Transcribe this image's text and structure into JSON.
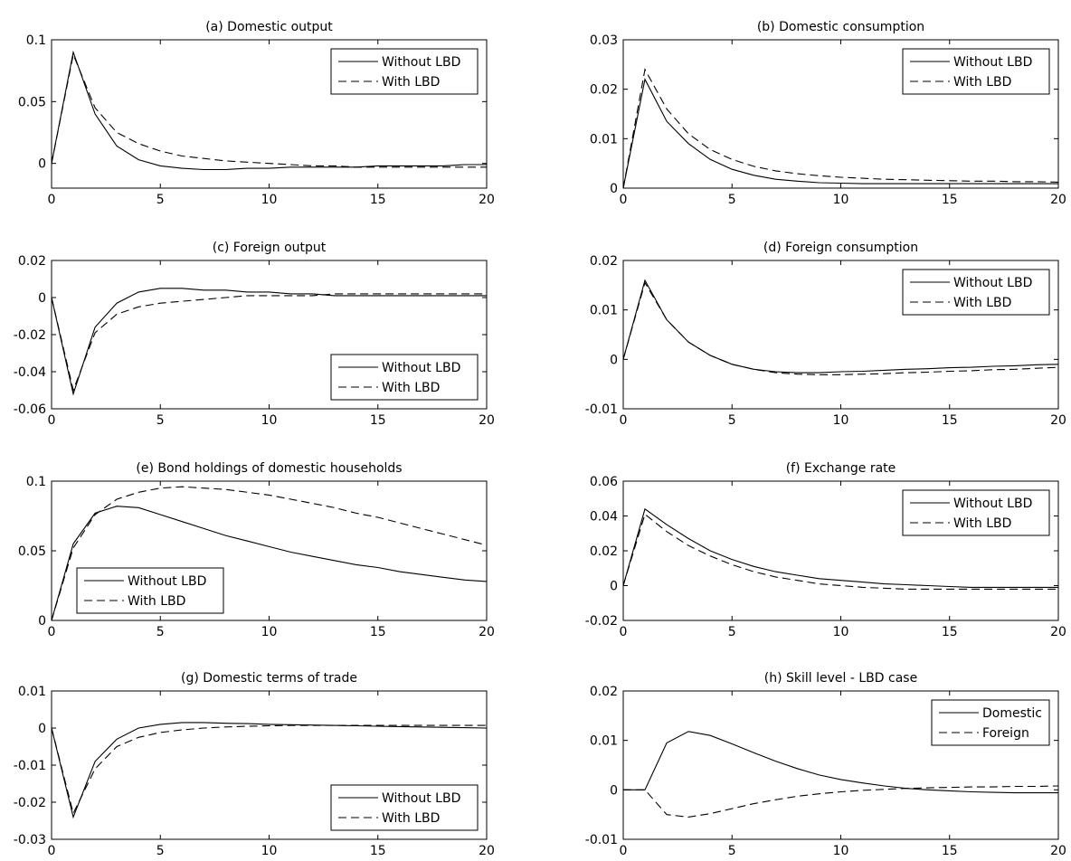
{
  "chart_data": [
    {
      "type": "line",
      "title": "(a) Domestic output",
      "xlim": [
        0,
        20
      ],
      "ylim": [
        -0.02,
        0.1
      ],
      "xticks": [
        0,
        5,
        10,
        15,
        20
      ],
      "yticks": [
        0,
        0.05,
        0.1
      ],
      "ytick_labels": [
        "0",
        "0.05",
        "0.1"
      ],
      "legend": "top-right",
      "series": [
        {
          "name": "Without LBD",
          "style": "solid",
          "x": [
            0,
            1,
            2,
            3,
            4,
            5,
            6,
            7,
            8,
            9,
            10,
            11,
            12,
            13,
            14,
            15,
            16,
            17,
            18,
            19,
            20
          ],
          "y": [
            0,
            0.09,
            0.04,
            0.014,
            0.003,
            -0.002,
            -0.004,
            -0.005,
            -0.005,
            -0.004,
            -0.004,
            -0.003,
            -0.003,
            -0.003,
            -0.003,
            -0.002,
            -0.002,
            -0.002,
            -0.002,
            -0.001,
            -0.001
          ]
        },
        {
          "name": "With LBD",
          "style": "dashed",
          "x": [
            0,
            1,
            2,
            3,
            4,
            5,
            6,
            7,
            8,
            9,
            10,
            11,
            12,
            13,
            14,
            15,
            16,
            17,
            18,
            19,
            20
          ],
          "y": [
            0,
            0.088,
            0.045,
            0.025,
            0.016,
            0.01,
            0.006,
            0.004,
            0.002,
            0.001,
            0,
            -0.001,
            -0.002,
            -0.002,
            -0.003,
            -0.003,
            -0.003,
            -0.003,
            -0.003,
            -0.003,
            -0.003
          ]
        }
      ]
    },
    {
      "type": "line",
      "title": "(b) Domestic consumption",
      "xlim": [
        0,
        20
      ],
      "ylim": [
        0,
        0.03
      ],
      "xticks": [
        0,
        5,
        10,
        15,
        20
      ],
      "yticks": [
        0,
        0.01,
        0.02,
        0.03
      ],
      "ytick_labels": [
        "0",
        "0.01",
        "0.02",
        "0.03"
      ],
      "legend": "top-right",
      "series": [
        {
          "name": "Without LBD",
          "style": "solid",
          "x": [
            0,
            1,
            2,
            3,
            4,
            5,
            6,
            7,
            8,
            9,
            10,
            11,
            12,
            13,
            14,
            15,
            16,
            17,
            18,
            19,
            20
          ],
          "y": [
            0,
            0.022,
            0.0135,
            0.009,
            0.0058,
            0.0038,
            0.0026,
            0.0018,
            0.0014,
            0.0011,
            0.001,
            0.0009,
            0.0009,
            0.0009,
            0.0009,
            0.0009,
            0.0009,
            0.0009,
            0.0009,
            0.0009,
            0.0009
          ]
        },
        {
          "name": "With LBD",
          "style": "dashed",
          "x": [
            0,
            1,
            2,
            3,
            4,
            5,
            6,
            7,
            8,
            9,
            10,
            11,
            12,
            13,
            14,
            15,
            16,
            17,
            18,
            19,
            20
          ],
          "y": [
            0,
            0.024,
            0.016,
            0.011,
            0.0078,
            0.0058,
            0.0044,
            0.0035,
            0.0029,
            0.0025,
            0.0022,
            0.002,
            0.0018,
            0.0017,
            0.0016,
            0.0015,
            0.0014,
            0.0014,
            0.0013,
            0.0013,
            0.0012
          ]
        }
      ]
    },
    {
      "type": "line",
      "title": "(c) Foreign output",
      "xlim": [
        0,
        20
      ],
      "ylim": [
        -0.06,
        0.02
      ],
      "xticks": [
        0,
        5,
        10,
        15,
        20
      ],
      "yticks": [
        -0.06,
        -0.04,
        -0.02,
        0,
        0.02
      ],
      "ytick_labels": [
        "-0.06",
        "-0.04",
        "-0.02",
        "0",
        "0.02"
      ],
      "legend": "bottom-right",
      "series": [
        {
          "name": "Without LBD",
          "style": "solid",
          "x": [
            0,
            1,
            2,
            3,
            4,
            5,
            6,
            7,
            8,
            9,
            10,
            11,
            12,
            13,
            14,
            15,
            16,
            17,
            18,
            19,
            20
          ],
          "y": [
            0,
            -0.052,
            -0.016,
            -0.003,
            0.003,
            0.005,
            0.005,
            0.004,
            0.004,
            0.003,
            0.003,
            0.002,
            0.002,
            0.001,
            0.001,
            0.001,
            0.001,
            0.001,
            0.001,
            0.001,
            0.001
          ]
        },
        {
          "name": "With LBD",
          "style": "dashed",
          "x": [
            0,
            1,
            2,
            3,
            4,
            5,
            6,
            7,
            8,
            9,
            10,
            11,
            12,
            13,
            14,
            15,
            16,
            17,
            18,
            19,
            20
          ],
          "y": [
            0,
            -0.05,
            -0.019,
            -0.009,
            -0.005,
            -0.003,
            -0.002,
            -0.001,
            0,
            0.001,
            0.001,
            0.001,
            0.001,
            0.002,
            0.002,
            0.002,
            0.002,
            0.002,
            0.002,
            0.002,
            0.002
          ]
        }
      ]
    },
    {
      "type": "line",
      "title": "(d) Foreign consumption",
      "xlim": [
        0,
        20
      ],
      "ylim": [
        -0.01,
        0.02
      ],
      "xticks": [
        0,
        5,
        10,
        15,
        20
      ],
      "yticks": [
        -0.01,
        0,
        0.01,
        0.02
      ],
      "ytick_labels": [
        "-0.01",
        "0",
        "0.01",
        "0.02"
      ],
      "legend": "top-right",
      "series": [
        {
          "name": "Without LBD",
          "style": "solid",
          "x": [
            0,
            1,
            2,
            3,
            4,
            5,
            6,
            7,
            8,
            9,
            10,
            11,
            12,
            13,
            14,
            15,
            16,
            17,
            18,
            19,
            20
          ],
          "y": [
            0,
            0.016,
            0.008,
            0.0035,
            0.0008,
            -0.001,
            -0.002,
            -0.0025,
            -0.0027,
            -0.0027,
            -0.0025,
            -0.0024,
            -0.0022,
            -0.002,
            -0.0019,
            -0.0017,
            -0.0016,
            -0.0014,
            -0.0013,
            -0.0011,
            -0.001
          ]
        },
        {
          "name": "With LBD",
          "style": "dashed",
          "x": [
            0,
            1,
            2,
            3,
            4,
            5,
            6,
            7,
            8,
            9,
            10,
            11,
            12,
            13,
            14,
            15,
            16,
            17,
            18,
            19,
            20
          ],
          "y": [
            0,
            0.0155,
            0.008,
            0.0035,
            0.0008,
            -0.001,
            -0.002,
            -0.0027,
            -0.003,
            -0.0031,
            -0.0031,
            -0.003,
            -0.0029,
            -0.0027,
            -0.0026,
            -0.0024,
            -0.0023,
            -0.0021,
            -0.002,
            -0.0018,
            -0.0016
          ]
        }
      ]
    },
    {
      "type": "line",
      "title": "(e) Bond holdings of domestic households",
      "xlim": [
        0,
        20
      ],
      "ylim": [
        0,
        0.1
      ],
      "xticks": [
        0,
        5,
        10,
        15,
        20
      ],
      "yticks": [
        0,
        0.05,
        0.1
      ],
      "ytick_labels": [
        "0",
        "0.05",
        "0.1"
      ],
      "legend": "bottom-left",
      "series": [
        {
          "name": "Without LBD",
          "style": "solid",
          "x": [
            0,
            1,
            2,
            3,
            4,
            5,
            6,
            7,
            8,
            9,
            10,
            11,
            12,
            13,
            14,
            15,
            16,
            17,
            18,
            19,
            20
          ],
          "y": [
            0,
            0.055,
            0.077,
            0.082,
            0.081,
            0.076,
            0.071,
            0.066,
            0.061,
            0.057,
            0.053,
            0.049,
            0.046,
            0.043,
            0.04,
            0.038,
            0.035,
            0.033,
            0.031,
            0.029,
            0.028
          ]
        },
        {
          "name": "With LBD",
          "style": "dashed",
          "x": [
            0,
            1,
            2,
            3,
            4,
            5,
            6,
            7,
            8,
            9,
            10,
            11,
            12,
            13,
            14,
            15,
            16,
            17,
            18,
            19,
            20
          ],
          "y": [
            0,
            0.052,
            0.076,
            0.087,
            0.092,
            0.095,
            0.096,
            0.095,
            0.094,
            0.092,
            0.09,
            0.087,
            0.084,
            0.081,
            0.077,
            0.074,
            0.07,
            0.066,
            0.062,
            0.058,
            0.054
          ]
        }
      ]
    },
    {
      "type": "line",
      "title": "(f) Exchange rate",
      "xlim": [
        0,
        20
      ],
      "ylim": [
        -0.02,
        0.06
      ],
      "xticks": [
        0,
        5,
        10,
        15,
        20
      ],
      "yticks": [
        -0.02,
        0,
        0.02,
        0.04,
        0.06
      ],
      "ytick_labels": [
        "-0.02",
        "0",
        "0.02",
        "0.04",
        "0.06"
      ],
      "legend": "top-right",
      "series": [
        {
          "name": "Without LBD",
          "style": "solid",
          "x": [
            0,
            1,
            2,
            3,
            4,
            5,
            6,
            7,
            8,
            9,
            10,
            11,
            12,
            13,
            14,
            15,
            16,
            17,
            18,
            19,
            20
          ],
          "y": [
            0,
            0.044,
            0.035,
            0.027,
            0.02,
            0.015,
            0.011,
            0.008,
            0.006,
            0.004,
            0.003,
            0.002,
            0.001,
            0.0005,
            0,
            -0.0005,
            -0.001,
            -0.001,
            -0.001,
            -0.001,
            -0.001
          ]
        },
        {
          "name": "With LBD",
          "style": "dashed",
          "x": [
            0,
            1,
            2,
            3,
            4,
            5,
            6,
            7,
            8,
            9,
            10,
            11,
            12,
            13,
            14,
            15,
            16,
            17,
            18,
            19,
            20
          ],
          "y": [
            0,
            0.041,
            0.031,
            0.023,
            0.017,
            0.012,
            0.008,
            0.005,
            0.003,
            0.001,
            0,
            -0.001,
            -0.0015,
            -0.002,
            -0.002,
            -0.002,
            -0.002,
            -0.002,
            -0.002,
            -0.002,
            -0.002
          ]
        }
      ]
    },
    {
      "type": "line",
      "title": "(g) Domestic terms of trade",
      "xlim": [
        0,
        20
      ],
      "ylim": [
        -0.03,
        0.01
      ],
      "xticks": [
        0,
        5,
        10,
        15,
        20
      ],
      "yticks": [
        -0.03,
        -0.02,
        -0.01,
        0,
        0.01
      ],
      "ytick_labels": [
        "-0.03",
        "-0.02",
        "-0.01",
        "0",
        "0.01"
      ],
      "legend": "bottom-right",
      "series": [
        {
          "name": "Without LBD",
          "style": "solid",
          "x": [
            0,
            1,
            2,
            3,
            4,
            5,
            6,
            7,
            8,
            9,
            10,
            11,
            12,
            13,
            14,
            15,
            16,
            17,
            18,
            19,
            20
          ],
          "y": [
            0,
            -0.024,
            -0.009,
            -0.003,
            0,
            0.001,
            0.0015,
            0.0015,
            0.0013,
            0.0012,
            0.001,
            0.0009,
            0.0008,
            0.0007,
            0.0006,
            0.0005,
            0.0004,
            0.0003,
            0.0002,
            0.0001,
            0
          ]
        },
        {
          "name": "With LBD",
          "style": "dashed",
          "x": [
            0,
            1,
            2,
            3,
            4,
            5,
            6,
            7,
            8,
            9,
            10,
            11,
            12,
            13,
            14,
            15,
            16,
            17,
            18,
            19,
            20
          ],
          "y": [
            0,
            -0.023,
            -0.011,
            -0.005,
            -0.0025,
            -0.0012,
            -0.0005,
            0,
            0.0003,
            0.0005,
            0.0006,
            0.0007,
            0.0007,
            0.0007,
            0.0007,
            0.0007,
            0.0007,
            0.0007,
            0.0007,
            0.0007,
            0.0007
          ]
        }
      ]
    },
    {
      "type": "line",
      "title": "(h) Skill level - LBD case",
      "xlim": [
        0,
        20
      ],
      "ylim": [
        -0.01,
        0.02
      ],
      "xticks": [
        0,
        5,
        10,
        15,
        20
      ],
      "yticks": [
        -0.01,
        0,
        0.01,
        0.02
      ],
      "ytick_labels": [
        "-0.01",
        "0",
        "0.01",
        "0.02"
      ],
      "legend": "top-right",
      "series": [
        {
          "name": "Domestic",
          "style": "solid",
          "x": [
            0,
            1,
            2,
            3,
            4,
            5,
            6,
            7,
            8,
            9,
            10,
            11,
            12,
            13,
            14,
            15,
            16,
            17,
            18,
            19,
            20
          ],
          "y": [
            0,
            0,
            0.0095,
            0.0118,
            0.011,
            0.0093,
            0.0075,
            0.0058,
            0.0043,
            0.003,
            0.0021,
            0.0014,
            0.0008,
            0.0003,
            0,
            -0.0002,
            -0.0004,
            -0.0005,
            -0.0006,
            -0.0006,
            -0.0006
          ]
        },
        {
          "name": "Foreign",
          "style": "dashed",
          "x": [
            0,
            1,
            2,
            3,
            4,
            5,
            6,
            7,
            8,
            9,
            10,
            11,
            12,
            13,
            14,
            15,
            16,
            17,
            18,
            19,
            20
          ],
          "y": [
            0,
            0,
            -0.005,
            -0.0055,
            -0.0048,
            -0.0038,
            -0.0028,
            -0.002,
            -0.0013,
            -0.0008,
            -0.0004,
            -0.0001,
            0.0001,
            0.0003,
            0.0004,
            0.0005,
            0.0006,
            0.0006,
            0.0007,
            0.0007,
            0.0008
          ]
        }
      ]
    }
  ]
}
